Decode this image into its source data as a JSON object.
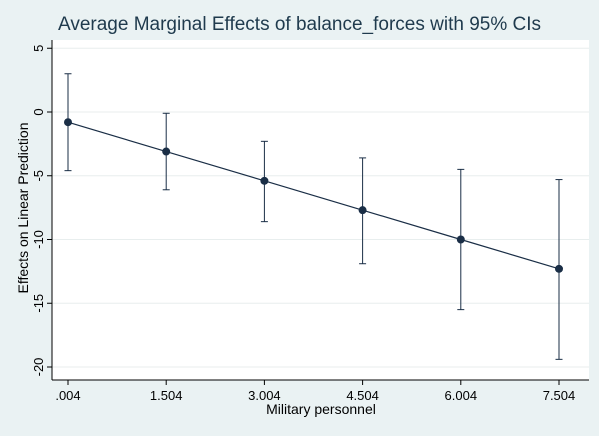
{
  "chart_data": {
    "type": "line",
    "title": "Average Marginal Effects of balance_forces with 95% CIs",
    "xlabel": "Military personnel",
    "ylabel": "Effects on Linear Prediction",
    "x": [
      0.004,
      1.504,
      3.004,
      4.504,
      6.004,
      7.504
    ],
    "x_tick_labels": [
      ".004",
      "1.504",
      "3.004",
      "4.504",
      "6.004",
      "7.504"
    ],
    "y_ticks": [
      5,
      0,
      -5,
      -10,
      -15,
      -20
    ],
    "y_tick_labels": [
      "5",
      "0",
      "-5",
      "-10",
      "-15",
      "-20"
    ],
    "xlim": [
      0.004,
      7.504
    ],
    "ylim": [
      -21,
      6
    ],
    "grid": "horizontal",
    "series": [
      {
        "values": [
          -0.8,
          -3.1,
          -5.4,
          -7.7,
          -10.0,
          -12.3
        ],
        "ci_lower": [
          -4.6,
          -6.1,
          -8.6,
          -11.9,
          -15.5,
          -19.4
        ],
        "ci_upper": [
          3.0,
          -0.1,
          -2.3,
          -3.6,
          -4.5,
          -5.3
        ]
      }
    ],
    "colors": {
      "outer_background": "#eaf2f3",
      "plot_background": "#ffffff",
      "line": "#1a2e46",
      "grid": "#e8eeee",
      "title": "#1f3a4d"
    }
  }
}
